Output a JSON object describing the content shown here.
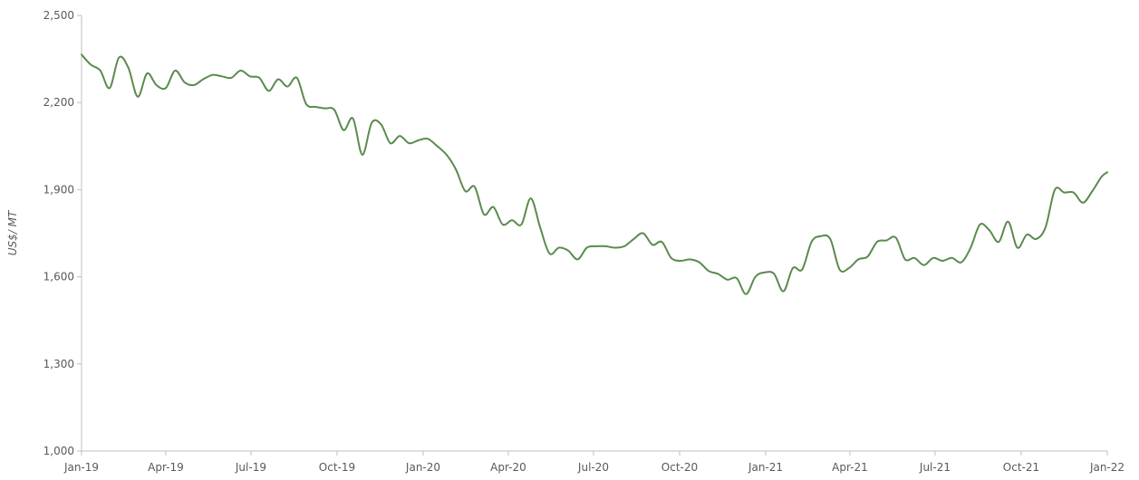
{
  "chart_data": {
    "type": "line",
    "title": "",
    "xlabel": "",
    "ylabel": "US$/ MT",
    "ylim": [
      1000,
      2500
    ],
    "yticks": [
      1000,
      1300,
      1600,
      1900,
      2200,
      2500
    ],
    "ytick_labels": [
      "1,000",
      "1,300",
      "1,600",
      "1,900",
      "2,200",
      "2,500"
    ],
    "xlim": [
      "2019-01-01",
      "2022-01-01"
    ],
    "xticks": [
      "2019-01-01",
      "2019-04-01",
      "2019-07-01",
      "2019-10-01",
      "2020-01-01",
      "2020-04-01",
      "2020-07-01",
      "2020-10-01",
      "2021-01-01",
      "2021-04-01",
      "2021-07-01",
      "2021-10-01",
      "2022-01-01"
    ],
    "xtick_labels": [
      "Jan-19",
      "Apr-19",
      "Jul-19",
      "Oct-19",
      "Jan-20",
      "Apr-20",
      "Jul-20",
      "Oct-20",
      "Jan-21",
      "Apr-21",
      "Jul-21",
      "Oct-21",
      "Jan-22"
    ],
    "grid": false,
    "legend": "none",
    "series": [
      {
        "color": "#5b8a4e",
        "x": [
          "2019-01-01",
          "2019-01-11",
          "2019-01-21",
          "2019-01-31",
          "2019-02-10",
          "2019-02-20",
          "2019-03-02",
          "2019-03-12",
          "2019-03-22",
          "2019-04-01",
          "2019-04-11",
          "2019-04-21",
          "2019-05-01",
          "2019-05-11",
          "2019-05-21",
          "2019-05-31",
          "2019-06-10",
          "2019-06-20",
          "2019-06-30",
          "2019-07-10",
          "2019-07-20",
          "2019-07-30",
          "2019-08-09",
          "2019-08-19",
          "2019-08-29",
          "2019-09-08",
          "2019-09-18",
          "2019-09-28",
          "2019-10-08",
          "2019-10-18",
          "2019-10-28",
          "2019-11-07",
          "2019-11-17",
          "2019-11-27",
          "2019-12-07",
          "2019-12-17",
          "2019-12-27",
          "2020-01-06",
          "2020-01-16",
          "2020-01-26",
          "2020-02-05",
          "2020-02-15",
          "2020-02-25",
          "2020-03-06",
          "2020-03-16",
          "2020-03-26",
          "2020-04-05",
          "2020-04-15",
          "2020-04-25",
          "2020-05-05",
          "2020-05-15",
          "2020-05-25",
          "2020-06-04",
          "2020-06-14",
          "2020-06-24",
          "2020-07-04",
          "2020-07-14",
          "2020-07-24",
          "2020-08-03",
          "2020-08-13",
          "2020-08-23",
          "2020-09-02",
          "2020-09-12",
          "2020-09-22",
          "2020-10-02",
          "2020-10-12",
          "2020-10-22",
          "2020-11-01",
          "2020-11-11",
          "2020-11-21",
          "2020-12-01",
          "2020-12-11",
          "2020-12-21",
          "2020-12-31",
          "2021-01-10",
          "2021-01-20",
          "2021-01-30",
          "2021-02-09",
          "2021-02-19",
          "2021-03-01",
          "2021-03-11",
          "2021-03-21",
          "2021-03-31",
          "2021-04-10",
          "2021-04-20",
          "2021-04-30",
          "2021-05-10",
          "2021-05-20",
          "2021-05-30",
          "2021-06-09",
          "2021-06-19",
          "2021-06-29",
          "2021-07-09",
          "2021-07-19",
          "2021-07-29",
          "2021-08-08",
          "2021-08-18",
          "2021-08-28",
          "2021-09-07",
          "2021-09-17",
          "2021-09-27",
          "2021-10-07",
          "2021-10-17",
          "2021-10-27",
          "2021-11-06",
          "2021-11-16",
          "2021-11-26",
          "2021-12-06",
          "2021-12-16",
          "2021-12-26",
          "2022-01-01"
        ],
        "values": [
          2365,
          2330,
          2310,
          2250,
          2355,
          2320,
          2220,
          2300,
          2260,
          2250,
          2310,
          2270,
          2260,
          2280,
          2295,
          2290,
          2285,
          2310,
          2290,
          2285,
          2240,
          2280,
          2255,
          2285,
          2195,
          2185,
          2180,
          2175,
          2105,
          2145,
          2020,
          2130,
          2125,
          2060,
          2085,
          2060,
          2070,
          2075,
          2050,
          2020,
          1970,
          1895,
          1910,
          1815,
          1840,
          1780,
          1795,
          1780,
          1870,
          1770,
          1680,
          1700,
          1690,
          1660,
          1700,
          1705,
          1705,
          1700,
          1705,
          1730,
          1750,
          1710,
          1720,
          1665,
          1655,
          1660,
          1650,
          1620,
          1610,
          1590,
          1595,
          1540,
          1600,
          1615,
          1610,
          1550,
          1630,
          1625,
          1720,
          1740,
          1730,
          1625,
          1630,
          1660,
          1670,
          1720,
          1725,
          1735,
          1660,
          1665,
          1640,
          1665,
          1655,
          1665,
          1650,
          1700,
          1780,
          1760,
          1720,
          1790,
          1700,
          1745,
          1730,
          1770,
          1900,
          1890,
          1890,
          1855,
          1895,
          1945,
          1960
        ]
      }
    ]
  }
}
